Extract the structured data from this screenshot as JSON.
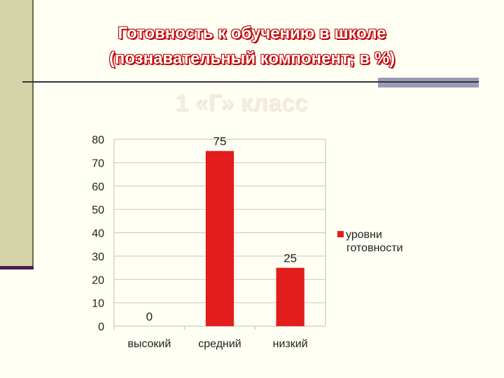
{
  "slide": {
    "title_line1": "Готовность к обучению в школе",
    "title_line2": "(познавательный компонент; в %)",
    "subtitle": "1 «Г» класс"
  },
  "colors": {
    "bar": "#e31c1c",
    "title_outline": "#c00000",
    "background": "#fffff4",
    "side_bar": "#d4d4a8"
  },
  "chart_data": {
    "type": "bar",
    "categories": [
      "высокий",
      "средний",
      "низкий"
    ],
    "series": [
      {
        "name_line1": "уровни",
        "name_line2": "готовности",
        "values": [
          0,
          75,
          25
        ]
      }
    ],
    "ylim": [
      0,
      80
    ],
    "yticks": [
      "0",
      "10",
      "20",
      "30",
      "40",
      "50",
      "60",
      "70",
      "80"
    ],
    "grid": true,
    "legend": "right"
  }
}
